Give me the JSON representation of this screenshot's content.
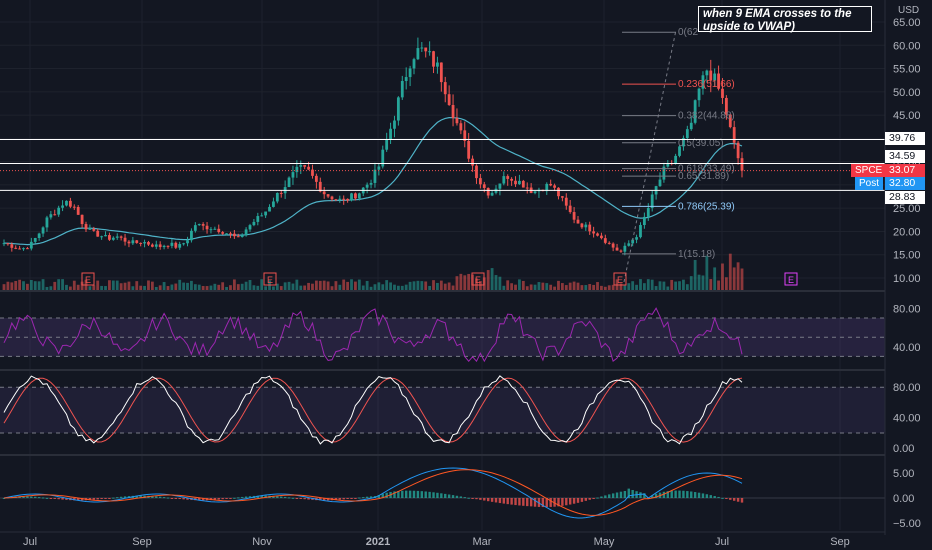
{
  "annotation": "when 9 EMA crosses to the upside to VWAP)",
  "currency": "USD",
  "symbol": "SPCE",
  "price_tags": {
    "level_1": "39.76",
    "level_2": "34.59",
    "last": "33.07",
    "post_label": "Post",
    "post": "32.80",
    "level_3": "28.83"
  },
  "colors": {
    "bg": "#131722",
    "up": "#26a69a",
    "down": "#ef5350",
    "ema": "#4fb3c8",
    "rsi": "#9c27b0",
    "stoch_k": "#ffffff",
    "stoch_d": "#ef5350",
    "macd": "#2196f3",
    "signal": "#ff5722",
    "fib": "#ffffff",
    "fib_red": "#ef5350",
    "fib_blue": "#90caf9"
  },
  "earnings_marker": "E",
  "chart_data": [
    {
      "type": "candlestick",
      "title": "SPCE",
      "y_ticks": [
        "65.00",
        "60.00",
        "55.00",
        "50.00",
        "45.00",
        "40.00",
        "35.00",
        "30.00",
        "25.00",
        "20.00",
        "15.00",
        "10.00"
      ],
      "ylim": [
        8,
        66
      ],
      "x_ticks": [
        "Jul",
        "Sep",
        "Nov",
        "2021",
        "Mar",
        "May",
        "Jul",
        "Sep"
      ],
      "horizontal_levels": [
        39.76,
        34.59,
        28.83
      ],
      "fib_levels": [
        {
          "label": "0(62",
          "value": 62.8
        },
        {
          "label": "0.236(51.66)",
          "value": 51.66
        },
        {
          "label": "0.382(44.88)",
          "value": 44.88
        },
        {
          "label": "0.5(39.05)",
          "value": 39.05
        },
        {
          "label": "0.618(33.49)",
          "value": 33.49
        },
        {
          "label": "0.65(31.89)",
          "value": 31.89
        },
        {
          "label": "0.786(25.39)",
          "value": 25.39
        },
        {
          "label": "1(15.18)",
          "value": 15.18
        }
      ],
      "close_path": [
        17.5,
        16.8,
        16.2,
        17.0,
        19.5,
        22.8,
        24.5,
        26.5,
        25.5,
        22.0,
        19.8,
        19.2,
        18.5,
        18.9,
        18.0,
        17.5,
        17.8,
        17.1,
        16.8,
        17.4,
        16.6,
        17.9,
        21.5,
        21.0,
        20.8,
        20.2,
        19.4,
        18.3,
        20.8,
        22.5,
        24.0,
        26.8,
        29.0,
        31.5,
        33.5,
        33.0,
        30.5,
        28.0,
        27.2,
        26.5,
        27.4,
        28.5,
        30.5,
        33.0,
        39.0,
        45.0,
        52.0,
        58.0,
        59.0,
        57.5,
        55.0,
        50.0,
        44.0,
        39.0,
        34.0,
        30.0,
        28.0,
        30.5,
        32.0,
        31.0,
        30.0,
        28.5,
        29.5,
        30.0,
        27.5,
        24.5,
        22.0,
        21.0,
        20.0,
        18.5,
        16.8,
        15.5,
        17.5,
        19.5,
        24.0,
        29.0,
        33.0,
        35.0,
        38.5,
        42.0,
        50.0,
        55.0,
        52.0,
        47.0,
        39.0,
        33.07
      ],
      "volume_note": "volume bars along bottom of price pane",
      "earnings_dates": [
        "Aug",
        "Nov",
        "Feb",
        "May",
        "Aug"
      ]
    },
    {
      "type": "line",
      "name": "rsi",
      "y_ticks": [
        "80.00",
        "40.00"
      ],
      "ylim": [
        20,
        95
      ],
      "bands": [
        70,
        30
      ]
    },
    {
      "type": "line",
      "name": "stochastic",
      "y_ticks": [
        "80.00",
        "40.00",
        "0.00"
      ],
      "ylim": [
        -5,
        100
      ],
      "bands": [
        80,
        20
      ]
    },
    {
      "type": "bar",
      "name": "macd",
      "y_ticks": [
        "5.00",
        "0.00",
        "−5.00"
      ],
      "ylim": [
        -6,
        8
      ]
    }
  ]
}
